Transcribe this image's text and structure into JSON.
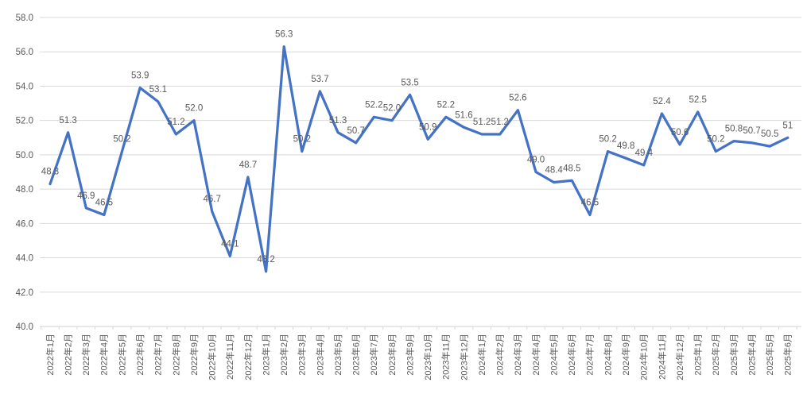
{
  "chart_data": {
    "type": "line",
    "title": "",
    "xlabel": "",
    "ylabel": "",
    "ylim": [
      40.0,
      58.0
    ],
    "y_tick_step": 2.0,
    "y_tick_labels": [
      "58.0",
      "56.0",
      "54.0",
      "52.0",
      "50.0",
      "48.0",
      "46.0",
      "44.0",
      "42.0",
      "40.0"
    ],
    "grid": "horizontal",
    "legend_position": "none",
    "categories": [
      "2022年1月",
      "2022年2月",
      "2022年3月",
      "2022年4月",
      "2022年5月",
      "2022年6月",
      "2022年7月",
      "2022年8月",
      "2022年9月",
      "2022年10月",
      "2022年11月",
      "2022年12月",
      "2023年1月",
      "2023年2月",
      "2023年3月",
      "2023年4月",
      "2023年5月",
      "2023年6月",
      "2023年7月",
      "2023年8月",
      "2023年9月",
      "2023年10月",
      "2023年11月",
      "2023年12月",
      "2024年1月",
      "2024年2月",
      "2024年3月",
      "2024年4月",
      "2024年5月",
      "2024年6月",
      "2024年7月",
      "2024年8月",
      "2024年9月",
      "2024年10月",
      "2024年11月",
      "2024年12月",
      "2025年1月",
      "2025年2月",
      "2025年3月",
      "2025年4月",
      "2025年5月",
      "2025年6月"
    ],
    "values": [
      48.3,
      51.3,
      46.9,
      46.5,
      50.2,
      53.9,
      53.1,
      51.2,
      52.0,
      46.7,
      44.1,
      48.7,
      43.2,
      56.3,
      50.2,
      53.7,
      51.3,
      50.7,
      52.2,
      52.0,
      53.5,
      50.9,
      52.2,
      51.6,
      51.2,
      51.2,
      52.6,
      49.0,
      48.4,
      48.5,
      46.5,
      50.2,
      49.8,
      49.4,
      52.4,
      50.6,
      52.5,
      50.2,
      50.8,
      50.7,
      50.5,
      51.0
    ],
    "point_labels": [
      "48.3",
      "51.3",
      "46.9",
      "46.5",
      "50.2",
      "53.9",
      "53.1",
      "51.2",
      "52.0",
      "46.7",
      "44.1",
      "48.7",
      "43.2",
      "56.3",
      "50.2",
      "53.7",
      "51.3",
      "50.7",
      "52.2",
      "52.0",
      "53.5",
      "50.9",
      "52.2",
      "51.6",
      "51.2",
      "51.2",
      "52.6",
      "49.0",
      "48.4",
      "48.5",
      "46.5",
      "50.2",
      "49.8",
      "49.4",
      "52.4",
      "50.6",
      "52.5",
      "50.2",
      "50.8",
      "50.7",
      "50.5",
      "51"
    ],
    "colors": {
      "line": "#4472C4",
      "data_label": "#595959",
      "axis_label": "#595959",
      "gridline": "#D9D9D9",
      "axis_line": "#D0D0D0",
      "background": "#FFFFFF"
    }
  }
}
